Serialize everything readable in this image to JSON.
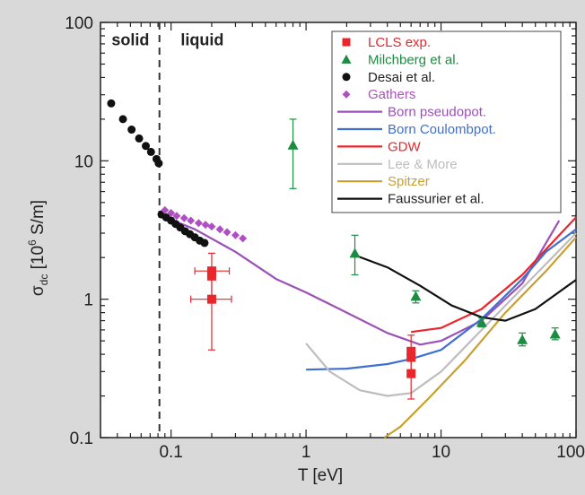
{
  "chart_data": {
    "type": "scatter",
    "xscale": "log",
    "yscale": "log",
    "xlim": [
      0.03,
      100
    ],
    "ylim": [
      0.1,
      100
    ],
    "xlabel": "T [eV]",
    "ylabel_main": "σ",
    "ylabel_sub": "dc",
    "ylabel_unit_pre": " [10",
    "ylabel_exp": "6",
    "ylabel_unit_post": " S/m]",
    "xticks": [
      {
        "value": 0.1,
        "label": "0.1"
      },
      {
        "value": 1,
        "label": "1"
      },
      {
        "value": 10,
        "label": "10"
      },
      {
        "value": 100,
        "label": "100"
      }
    ],
    "yticks": [
      {
        "value": 0.1,
        "label": "0.1"
      },
      {
        "value": 1,
        "label": "1"
      },
      {
        "value": 10,
        "label": "10"
      },
      {
        "value": 100,
        "label": "100"
      }
    ],
    "phase_boundary_x": 0.082,
    "region_labels": [
      {
        "text": "solid",
        "x": 0.05,
        "y": 75
      },
      {
        "text": "liquid",
        "x": 0.17,
        "y": 75
      }
    ],
    "legend_position": "top-right",
    "grid": false,
    "markers": [
      {
        "name": "LCLS exp.",
        "color": "#e8262b",
        "marker": "square",
        "points": [
          {
            "x": 0.2,
            "y": 1.6,
            "xerr": [
              0.15,
              0.27
            ],
            "yerr": [
              1.05,
              2.15
            ]
          },
          {
            "x": 0.2,
            "y": 1.47
          },
          {
            "x": 0.2,
            "y": 1.0,
            "xerr": [
              0.14,
              0.28
            ],
            "yerr": [
              0.43,
              1.5
            ]
          },
          {
            "x": 6.0,
            "y": 0.42,
            "yerr": [
              0.28,
              0.55
            ]
          },
          {
            "x": 6.0,
            "y": 0.38
          },
          {
            "x": 6.0,
            "y": 0.29,
            "yerr": [
              0.19,
              0.38
            ]
          }
        ]
      },
      {
        "name": "Milchberg et al.",
        "color": "#1d8c43",
        "marker": "triangle",
        "points": [
          {
            "x": 0.8,
            "y": 13.0,
            "yerr": [
              6.3,
              20
            ]
          },
          {
            "x": 2.3,
            "y": 2.15,
            "yerr": [
              1.5,
              2.9
            ]
          },
          {
            "x": 6.5,
            "y": 1.05,
            "yerr": [
              0.94,
              1.15
            ]
          },
          {
            "x": 20,
            "y": 0.68,
            "yerr": [
              0.63,
              0.73
            ]
          },
          {
            "x": 40,
            "y": 0.51,
            "yerr": [
              0.46,
              0.57
            ]
          },
          {
            "x": 70,
            "y": 0.56,
            "yerr": [
              0.51,
              0.62
            ]
          }
        ]
      },
      {
        "name": "Desai et al.",
        "color": "#111111",
        "marker": "circle",
        "points": [
          {
            "x": 0.036,
            "y": 26
          },
          {
            "x": 0.044,
            "y": 20
          },
          {
            "x": 0.051,
            "y": 16.8
          },
          {
            "x": 0.058,
            "y": 14.5
          },
          {
            "x": 0.065,
            "y": 12.8
          },
          {
            "x": 0.071,
            "y": 11.6
          },
          {
            "x": 0.078,
            "y": 10.3
          },
          {
            "x": 0.081,
            "y": 9.6
          },
          {
            "x": 0.085,
            "y": 4.1
          },
          {
            "x": 0.092,
            "y": 3.9
          },
          {
            "x": 0.1,
            "y": 3.7
          },
          {
            "x": 0.108,
            "y": 3.5
          },
          {
            "x": 0.117,
            "y": 3.3
          },
          {
            "x": 0.127,
            "y": 3.1
          },
          {
            "x": 0.138,
            "y": 2.95
          },
          {
            "x": 0.15,
            "y": 2.8
          },
          {
            "x": 0.163,
            "y": 2.65
          },
          {
            "x": 0.177,
            "y": 2.55
          }
        ]
      },
      {
        "name": "Gathers",
        "color": "#b04fc4",
        "marker": "diamond",
        "points": [
          {
            "x": 0.09,
            "y": 4.4
          },
          {
            "x": 0.1,
            "y": 4.2
          },
          {
            "x": 0.11,
            "y": 4.0
          },
          {
            "x": 0.125,
            "y": 3.85
          },
          {
            "x": 0.14,
            "y": 3.7
          },
          {
            "x": 0.16,
            "y": 3.55
          },
          {
            "x": 0.18,
            "y": 3.45
          },
          {
            "x": 0.2,
            "y": 3.35
          },
          {
            "x": 0.23,
            "y": 3.2
          },
          {
            "x": 0.26,
            "y": 3.05
          },
          {
            "x": 0.3,
            "y": 2.9
          },
          {
            "x": 0.34,
            "y": 2.75
          }
        ]
      }
    ],
    "curves": [
      {
        "name": "Born pseudopot.",
        "color": "#9b51b8",
        "points": [
          [
            0.085,
            4.0
          ],
          [
            0.15,
            3.2
          ],
          [
            0.3,
            2.2
          ],
          [
            0.6,
            1.4
          ],
          [
            1.0,
            1.12
          ],
          [
            2.0,
            0.8
          ],
          [
            4.0,
            0.57
          ],
          [
            7.0,
            0.47
          ],
          [
            10,
            0.5
          ],
          [
            20,
            0.7
          ],
          [
            40,
            1.3
          ],
          [
            75,
            3.7
          ]
        ]
      },
      {
        "name": "Born Coulombpot.",
        "color": "#3e6fd1",
        "points": [
          [
            1.0,
            0.31
          ],
          [
            2.0,
            0.315
          ],
          [
            4.0,
            0.34
          ],
          [
            6.0,
            0.37
          ],
          [
            10,
            0.43
          ],
          [
            20,
            0.72
          ],
          [
            40,
            1.4
          ],
          [
            60,
            2.2
          ],
          [
            100,
            3.2
          ]
        ]
      },
      {
        "name": "GDW",
        "color": "#e8262b",
        "points": [
          [
            6.0,
            0.58
          ],
          [
            10,
            0.62
          ],
          [
            20,
            0.85
          ],
          [
            40,
            1.5
          ],
          [
            70,
            2.7
          ],
          [
            100,
            3.9
          ]
        ]
      },
      {
        "name": "Lee & More",
        "color": "#bdbdbd",
        "points": [
          [
            1.0,
            0.48
          ],
          [
            1.5,
            0.3
          ],
          [
            2.5,
            0.22
          ],
          [
            4.0,
            0.2
          ],
          [
            6.0,
            0.21
          ],
          [
            10,
            0.3
          ],
          [
            20,
            0.6
          ],
          [
            40,
            1.2
          ],
          [
            100,
            3.0
          ]
        ]
      },
      {
        "name": "Spitzer",
        "color": "#c8a032",
        "points": [
          [
            3.8,
            0.1
          ],
          [
            5.0,
            0.12
          ],
          [
            8.0,
            0.19
          ],
          [
            15,
            0.36
          ],
          [
            30,
            0.8
          ],
          [
            60,
            1.6
          ],
          [
            100,
            2.8
          ]
        ]
      },
      {
        "name": "Faussurier et al.",
        "color": "#111111",
        "points": [
          [
            2.4,
            2.05
          ],
          [
            4.0,
            1.7
          ],
          [
            7.0,
            1.25
          ],
          [
            12,
            0.9
          ],
          [
            20,
            0.74
          ],
          [
            30,
            0.7
          ],
          [
            50,
            0.85
          ],
          [
            100,
            1.38
          ]
        ]
      }
    ]
  }
}
